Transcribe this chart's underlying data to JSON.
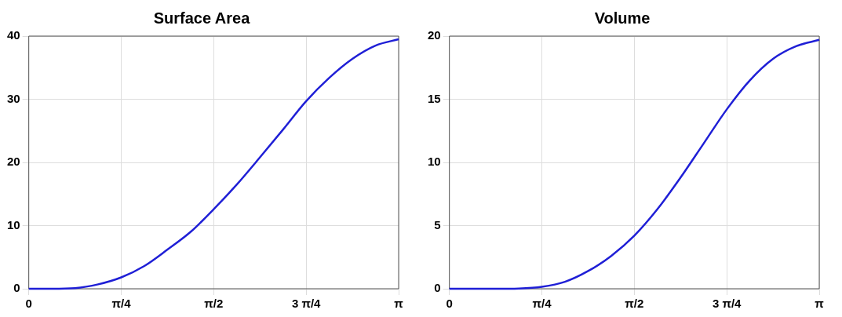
{
  "chart_data": [
    {
      "type": "line",
      "title": "Surface Area",
      "x": [
        0,
        0.19635,
        0.3927,
        0.589,
        0.7854,
        0.9817,
        1.1781,
        1.3744,
        1.5708,
        1.7671,
        1.9635,
        2.1598,
        2.3562,
        2.5525,
        2.7489,
        2.9452,
        3.14159
      ],
      "series": [
        {
          "color": "#1f1fd6",
          "values": [
            0,
            0,
            0.1,
            0.7,
            1.8,
            3.6,
            6.2,
            9.0,
            12.6,
            16.5,
            20.8,
            25.2,
            29.7,
            33.4,
            36.4,
            38.5,
            39.5
          ]
        }
      ],
      "xlim": [
        0,
        3.14159
      ],
      "xticks": [
        0,
        {
          "value": 0.7854,
          "label": "π/4"
        },
        {
          "value": 1.5708,
          "label": "π/2"
        },
        {
          "value": 2.3562,
          "label": "3 π/4"
        },
        {
          "value": 3.14159,
          "label": "π"
        }
      ],
      "ylim": [
        0,
        40
      ],
      "yticks": [
        0,
        10,
        20,
        30,
        40
      ],
      "grid": true,
      "legend": false,
      "marker": "none",
      "line_style": "solid"
    },
    {
      "type": "line",
      "title": "Volume",
      "x": [
        0,
        0.19635,
        0.3927,
        0.589,
        0.7854,
        0.9817,
        1.1781,
        1.3744,
        1.5708,
        1.7671,
        1.9635,
        2.1598,
        2.3562,
        2.5525,
        2.7489,
        2.9452,
        3.14159
      ],
      "series": [
        {
          "color": "#1f1fd6",
          "values": [
            0,
            0,
            0,
            0.02,
            0.15,
            0.55,
            1.4,
            2.6,
            4.2,
            6.3,
            8.8,
            11.5,
            14.2,
            16.5,
            18.2,
            19.2,
            19.7
          ]
        }
      ],
      "xlim": [
        0,
        3.14159
      ],
      "xticks": [
        0,
        {
          "value": 0.7854,
          "label": "π/4"
        },
        {
          "value": 1.5708,
          "label": "π/2"
        },
        {
          "value": 2.3562,
          "label": "3 π/4"
        },
        {
          "value": 3.14159,
          "label": "π"
        }
      ],
      "ylim": [
        0,
        20
      ],
      "yticks": [
        0,
        5,
        10,
        15,
        20
      ],
      "grid": true,
      "legend": false,
      "marker": "none",
      "line_style": "solid"
    }
  ]
}
